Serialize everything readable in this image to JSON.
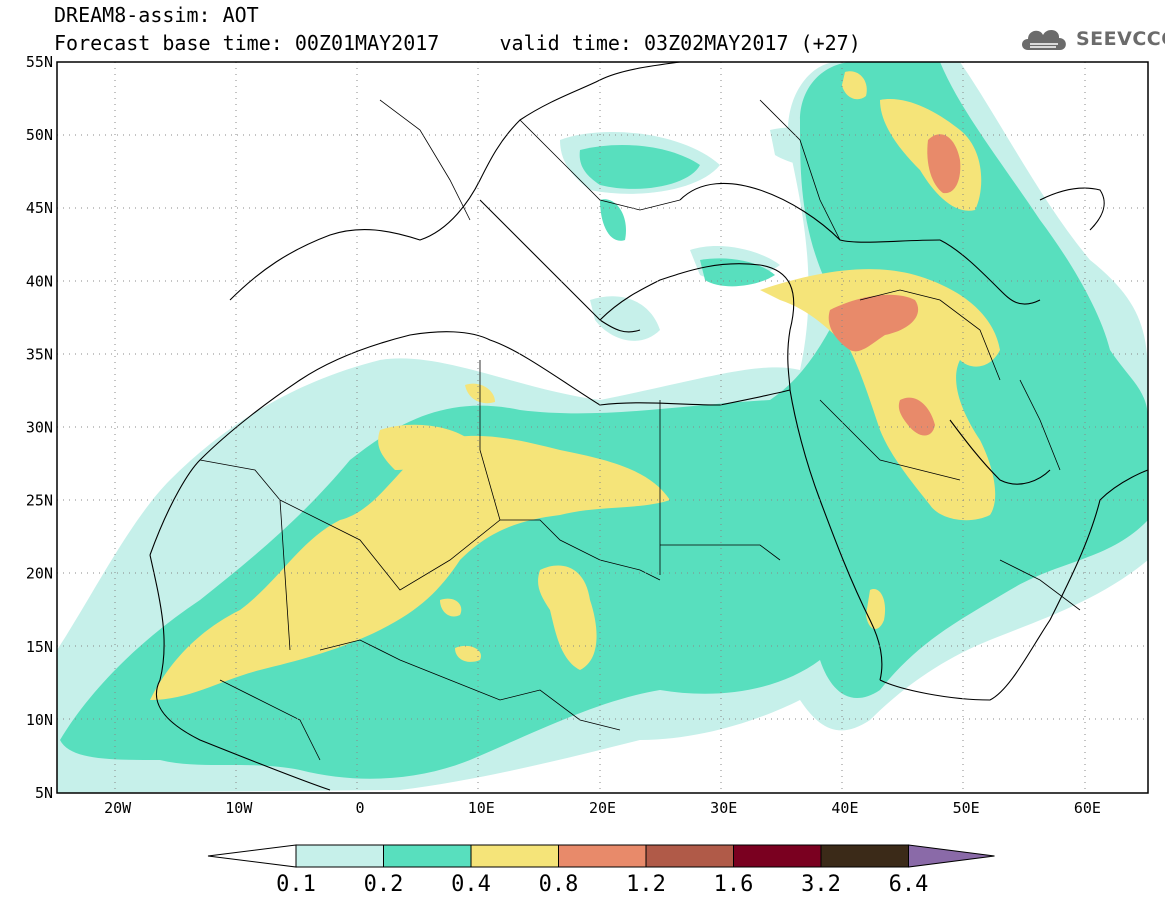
{
  "header": {
    "line1": "DREAM8-assim: AOT",
    "line2": "Forecast base time: 00Z01MAY2017     valid time: 03Z02MAY2017 (+27)"
  },
  "brand": {
    "name": "SEEVCCC",
    "icon": "cloud-icon"
  },
  "map": {
    "lon_range": [
      -25,
      65
    ],
    "lat_range": [
      5,
      55
    ],
    "lat_ticks": [
      "55N",
      "50N",
      "45N",
      "40N",
      "35N",
      "30N",
      "25N",
      "20N",
      "15N",
      "10N",
      "5N"
    ],
    "lon_ticks": [
      "20W",
      "10W",
      "0",
      "10E",
      "20E",
      "30E",
      "40E",
      "50E",
      "60E"
    ],
    "grid": "dotted"
  },
  "colorbar": {
    "labels": [
      "0.1",
      "0.2",
      "0.4",
      "0.8",
      "1.2",
      "1.6",
      "3.2",
      "6.4"
    ],
    "colors": [
      "#ffffff",
      "#c6f0ea",
      "#58dfbe",
      "#f5e479",
      "#e88a6a",
      "#b05a48",
      "#7a0020",
      "#3b2a18",
      "#8a6aa8"
    ]
  },
  "field_colors": {
    "c1": "#c6f0ea",
    "c2": "#58dfbe",
    "c3": "#f5e479",
    "c4": "#e88a6a"
  }
}
